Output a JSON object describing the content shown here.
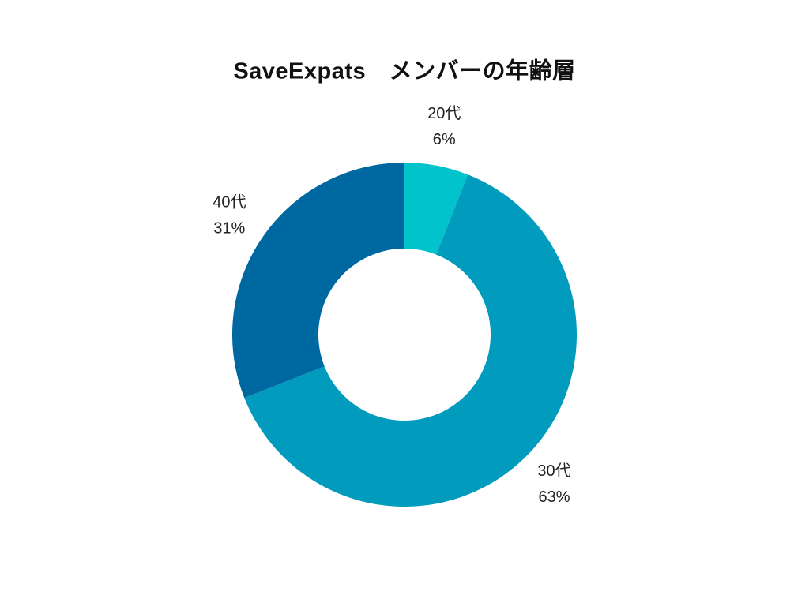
{
  "chart_data": {
    "type": "donut",
    "title": "SaveExpats　メンバーの年齢層",
    "categories": [
      "20代",
      "30代",
      "40代"
    ],
    "values": [
      6,
      63,
      31
    ],
    "value_labels": [
      "6%",
      "63%",
      "31%"
    ],
    "colors": [
      "#00c3cc",
      "#009bbd",
      "#0068a0"
    ]
  }
}
